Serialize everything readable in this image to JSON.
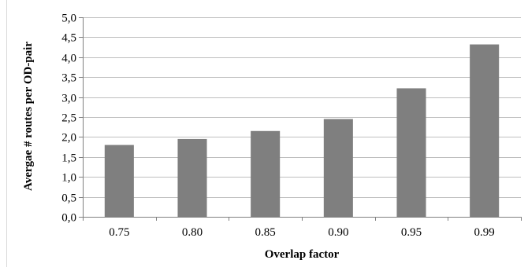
{
  "chart_data": {
    "type": "bar",
    "categories": [
      "0.75",
      "0.80",
      "0.85",
      "0.90",
      "0.95",
      "0.99"
    ],
    "values": [
      1.8,
      1.95,
      2.15,
      2.45,
      3.22,
      4.32
    ],
    "xlabel": "Overlap factor",
    "ylabel": "Avergae # routes per OD-pair",
    "ylim": [
      0,
      5
    ],
    "yticks": [
      "0,0",
      "0,5",
      "1,0",
      "1,5",
      "2,0",
      "2,5",
      "3,0",
      "3,5",
      "4,0",
      "4,5",
      "5,0"
    ],
    "grid": true,
    "bar_color": "#7f7f7f",
    "grid_color": "#bfbfbf",
    "axis_color": "#808080"
  }
}
